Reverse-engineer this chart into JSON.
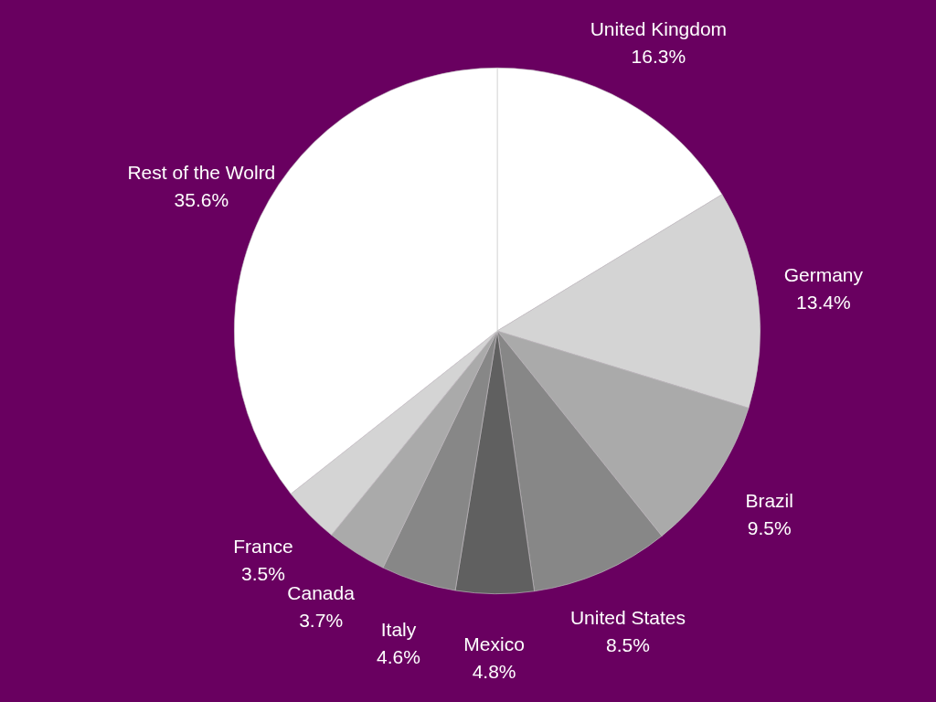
{
  "chart_data": {
    "type": "pie",
    "categories": [
      "United Kingdom",
      "Germany",
      "Brazil",
      "United States",
      "Mexico",
      "Italy",
      "Canada",
      "France",
      "Rest of the Wolrd"
    ],
    "values": [
      16.3,
      13.4,
      9.5,
      8.5,
      4.8,
      4.6,
      3.7,
      3.5,
      35.6
    ],
    "value_labels": [
      "16.3%",
      "13.4%",
      "9.5%",
      "8.5%",
      "4.8%",
      "4.6%",
      "3.7%",
      "3.5%",
      "35.6%"
    ],
    "colors": [
      "#ffffff",
      "#d4d4d4",
      "#aaaaaa",
      "#878787",
      "#606060",
      "#878787",
      "#aaaaaa",
      "#d4d4d4",
      "#ffffff"
    ],
    "legend": false
  }
}
